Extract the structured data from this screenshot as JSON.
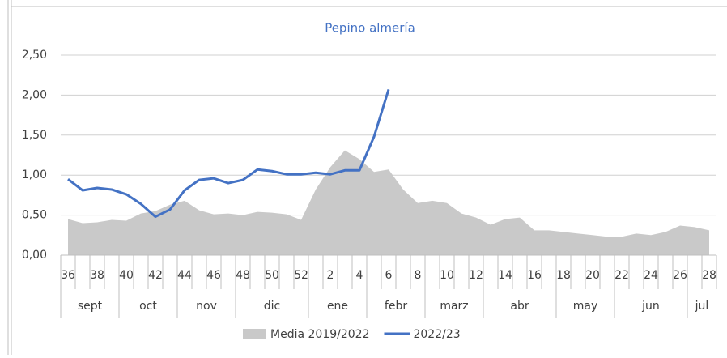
{
  "chart_data": {
    "type": "area-line",
    "title": "Pepino almería",
    "categories": [
      "36",
      null,
      "38",
      null,
      "40",
      null,
      "42",
      null,
      "44",
      null,
      "46",
      null,
      "48",
      null,
      "50",
      null,
      "52",
      null,
      "2",
      null,
      "4",
      null,
      "6",
      null,
      "8",
      null,
      "10",
      null,
      "12",
      null,
      "14",
      null,
      "16",
      null,
      "18",
      null,
      "20",
      null,
      "22",
      null,
      "24",
      null,
      "26",
      null,
      "28"
    ],
    "months": [
      {
        "label": "sept",
        "span": 4
      },
      {
        "label": "oct",
        "span": 4
      },
      {
        "label": "nov",
        "span": 4
      },
      {
        "label": "dic",
        "span": 5
      },
      {
        "label": "ene",
        "span": 4
      },
      {
        "label": "febr",
        "span": 4
      },
      {
        "label": "marz",
        "span": 4
      },
      {
        "label": "abr",
        "span": 5
      },
      {
        "label": "may",
        "span": 4
      },
      {
        "label": "jun",
        "span": 5
      },
      {
        "label": "jul",
        "span": 2
      }
    ],
    "series": [
      {
        "name": "Media 2019/2022",
        "kind": "area",
        "color": "#c9c9c9",
        "values": [
          0.45,
          0.4,
          0.41,
          0.44,
          0.43,
          0.52,
          0.55,
          0.63,
          0.68,
          0.56,
          0.51,
          0.52,
          0.5,
          0.54,
          0.53,
          0.51,
          0.44,
          0.82,
          1.1,
          1.31,
          1.2,
          1.04,
          1.07,
          0.82,
          0.65,
          0.68,
          0.65,
          0.52,
          0.47,
          0.38,
          0.45,
          0.47,
          0.31,
          0.31,
          0.29,
          0.27,
          0.25,
          0.23,
          0.23,
          0.27,
          0.25,
          0.29,
          0.37,
          0.35,
          0.31
        ]
      },
      {
        "name": "2022/23",
        "kind": "line",
        "color": "#4472c4",
        "values": [
          0.95,
          0.81,
          0.84,
          0.82,
          0.76,
          0.64,
          0.48,
          0.57,
          0.81,
          0.94,
          0.96,
          0.9,
          0.94,
          1.07,
          1.05,
          1.01,
          1.01,
          1.03,
          1.01,
          1.06,
          1.06,
          1.48,
          2.07,
          null,
          null,
          null,
          null,
          null,
          null,
          null,
          null,
          null,
          null,
          null,
          null,
          null,
          null,
          null,
          null,
          null,
          null,
          null,
          null,
          null,
          null
        ]
      }
    ],
    "ylim": [
      0,
      2.5
    ],
    "yticks": [
      {
        "value": 0,
        "label": "0,00"
      },
      {
        "value": 0.5,
        "label": "0,50"
      },
      {
        "value": 1,
        "label": "1,00"
      },
      {
        "value": 1.5,
        "label": "1,50"
      },
      {
        "value": 2,
        "label": "2,00"
      },
      {
        "value": 2.5,
        "label": "2,50"
      }
    ],
    "grid": true
  }
}
